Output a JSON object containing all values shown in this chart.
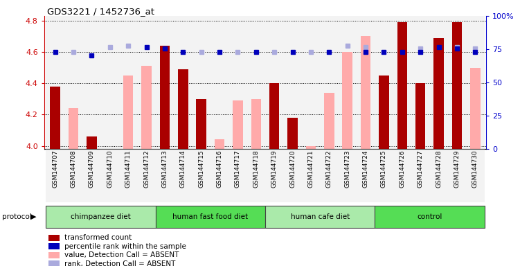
{
  "title": "GDS3221 / 1452736_at",
  "samples": [
    "GSM144707",
    "GSM144708",
    "GSM144709",
    "GSM144710",
    "GSM144711",
    "GSM144712",
    "GSM144713",
    "GSM144714",
    "GSM144715",
    "GSM144716",
    "GSM144717",
    "GSM144718",
    "GSM144719",
    "GSM144720",
    "GSM144721",
    "GSM144722",
    "GSM144723",
    "GSM144724",
    "GSM144725",
    "GSM144726",
    "GSM144727",
    "GSM144728",
    "GSM144729",
    "GSM144730"
  ],
  "red_values": [
    4.38,
    null,
    4.06,
    null,
    null,
    null,
    4.64,
    4.49,
    4.3,
    null,
    null,
    null,
    4.4,
    4.18,
    null,
    null,
    null,
    null,
    4.45,
    4.79,
    4.4,
    4.69,
    4.79,
    null
  ],
  "pink_values": [
    null,
    4.24,
    null,
    null,
    4.45,
    4.51,
    null,
    null,
    null,
    4.04,
    4.29,
    4.3,
    null,
    null,
    4.0,
    4.34,
    4.6,
    4.7,
    null,
    null,
    null,
    null,
    null,
    4.5
  ],
  "blue_values": [
    4.6,
    null,
    4.58,
    null,
    null,
    4.63,
    4.62,
    4.6,
    null,
    4.6,
    null,
    4.6,
    null,
    4.6,
    null,
    4.6,
    null,
    4.6,
    4.6,
    4.6,
    4.6,
    4.63,
    4.62,
    4.6
  ],
  "lb_values": [
    null,
    4.6,
    null,
    4.63,
    4.64,
    null,
    null,
    null,
    4.6,
    null,
    4.6,
    null,
    4.6,
    null,
    4.6,
    null,
    4.64,
    4.63,
    null,
    null,
    4.62,
    null,
    4.63,
    4.62
  ],
  "groups": [
    {
      "label": "chimpanzee diet",
      "start": 0,
      "end": 6,
      "color": "#AAEAAA"
    },
    {
      "label": "human fast food diet",
      "start": 6,
      "end": 12,
      "color": "#55DD55"
    },
    {
      "label": "human cafe diet",
      "start": 12,
      "end": 18,
      "color": "#AAEAAA"
    },
    {
      "label": "control",
      "start": 18,
      "end": 24,
      "color": "#55DD55"
    }
  ],
  "ymin": 3.98,
  "ymax": 4.83,
  "yticks_left": [
    4.0,
    4.2,
    4.4,
    4.6,
    4.8
  ],
  "yticks_right": [
    0,
    25,
    50,
    75,
    100
  ],
  "red_color": "#AA0000",
  "pink_color": "#FFAAAA",
  "blue_color": "#0000BB",
  "lb_color": "#AAAADD",
  "bg_color": "#FFFFFF",
  "col_bg_odd": "#DDDDDD",
  "col_bg_even": "#DDDDDD",
  "left_ycolor": "#CC0000",
  "right_ycolor": "#0000CC"
}
